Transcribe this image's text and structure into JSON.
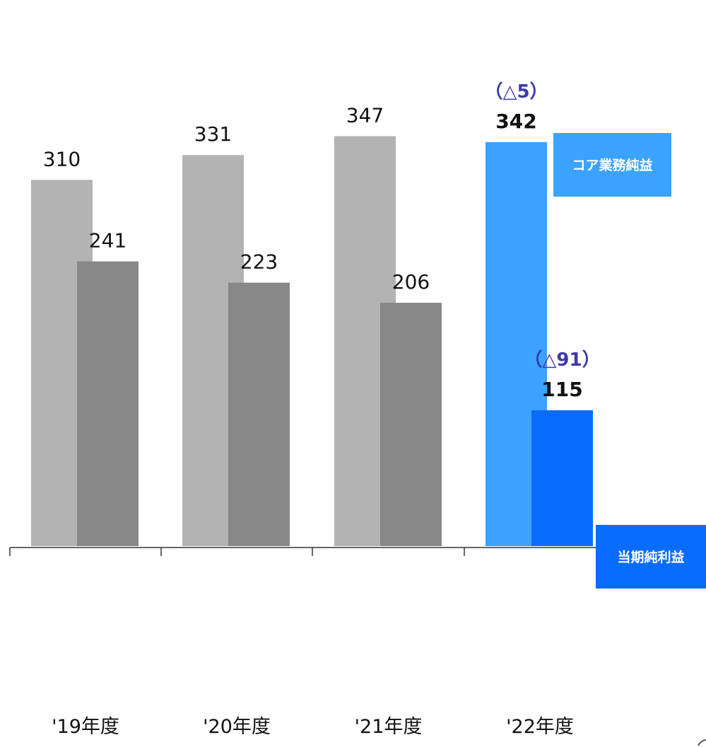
{
  "chart_data": {
    "type": "bar",
    "categories": [
      "'19年度",
      "'20年度",
      "'21年度",
      "'22年度"
    ],
    "series": [
      {
        "name": "コア業務純益",
        "values": [
          310,
          331,
          347,
          342
        ],
        "colors": [
          "#b3b3b3",
          "#b3b3b3",
          "#b3b3b3",
          "#3ba2ff"
        ]
      },
      {
        "name": "当期純利益",
        "values": [
          241,
          223,
          206,
          115
        ],
        "colors": [
          "#888888",
          "#888888",
          "#888888",
          "#0a6cff"
        ]
      }
    ],
    "annotations": [
      {
        "category_index": 3,
        "series_index": 0,
        "text": "（△5）"
      },
      {
        "category_index": 3,
        "series_index": 1,
        "text": "（△91）"
      }
    ],
    "ylim": [
      0,
      400
    ],
    "grid": false,
    "legend": "right, boxed labels beside last category"
  }
}
